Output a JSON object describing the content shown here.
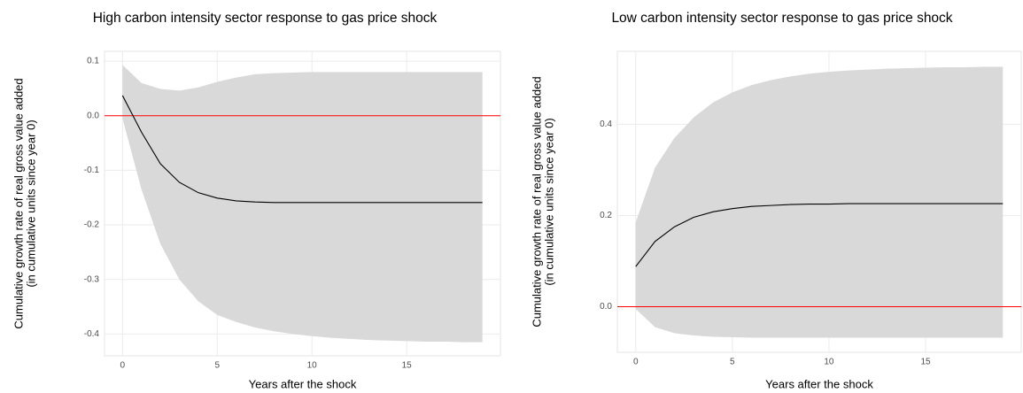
{
  "chart_data": [
    {
      "type": "line",
      "title": "High carbon intensity sector response to gas price shock",
      "x_label": "Years after the shock",
      "y_label": [
        "Cumulative growth rate of real gross value added",
        "(in cumulative units since year 0)"
      ],
      "x": [
        0,
        1,
        2,
        3,
        4,
        5,
        6,
        7,
        8,
        9,
        10,
        11,
        12,
        13,
        14,
        15,
        16,
        17,
        18,
        19
      ],
      "values": [
        0.037,
        -0.03,
        -0.088,
        -0.122,
        -0.141,
        -0.151,
        -0.156,
        -0.158,
        -0.159,
        -0.159,
        -0.159,
        -0.159,
        -0.159,
        -0.159,
        -0.159,
        -0.159,
        -0.159,
        -0.159,
        -0.159,
        -0.159
      ],
      "upper": [
        0.093,
        0.06,
        0.049,
        0.046,
        0.052,
        0.062,
        0.07,
        0.076,
        0.078,
        0.079,
        0.08,
        0.08,
        0.08,
        0.08,
        0.08,
        0.08,
        0.08,
        0.08,
        0.08,
        0.08
      ],
      "lower": [
        -0.005,
        -0.135,
        -0.235,
        -0.3,
        -0.34,
        -0.365,
        -0.378,
        -0.388,
        -0.395,
        -0.4,
        -0.404,
        -0.407,
        -0.409,
        -0.411,
        -0.412,
        -0.413,
        -0.414,
        -0.414,
        -0.415,
        -0.415
      ],
      "line_color": "#000000",
      "band_color": "#d9d9d9",
      "reference_line": {
        "value": 0,
        "color": "#ff0000"
      },
      "xlim": [
        -0.95,
        19.95
      ],
      "xticks": [
        0,
        5,
        10,
        15
      ],
      "ylim": [
        -0.44,
        0.118
      ],
      "yticks": [
        0.1,
        {
          "value": 0,
          "label": "0.0"
        },
        -0.1,
        -0.2,
        -0.3,
        -0.4
      ],
      "grid": true
    },
    {
      "type": "line",
      "title": "Low carbon intensity sector response to gas price shock",
      "x_label": "Years after the shock",
      "y_label": [
        "Cumulative growth rate of real gross value added",
        "(in cumulative units since year 0)"
      ],
      "x": [
        0,
        1,
        2,
        3,
        4,
        5,
        6,
        7,
        8,
        9,
        10,
        11,
        12,
        13,
        14,
        15,
        16,
        17,
        18,
        19
      ],
      "values": [
        0.088,
        0.143,
        0.175,
        0.196,
        0.208,
        0.215,
        0.22,
        0.222,
        0.224,
        0.225,
        0.225,
        0.226,
        0.226,
        0.226,
        0.226,
        0.226,
        0.226,
        0.226,
        0.226,
        0.226
      ],
      "upper": [
        0.185,
        0.305,
        0.37,
        0.415,
        0.448,
        0.47,
        0.486,
        0.497,
        0.505,
        0.511,
        0.515,
        0.518,
        0.52,
        0.522,
        0.523,
        0.524,
        0.525,
        0.525,
        0.526,
        0.526
      ],
      "lower": [
        -0.005,
        -0.045,
        -0.058,
        -0.063,
        -0.066,
        -0.067,
        -0.068,
        -0.068,
        -0.068,
        -0.068,
        -0.068,
        -0.068,
        -0.068,
        -0.068,
        -0.068,
        -0.068,
        -0.068,
        -0.068,
        -0.068,
        -0.068
      ],
      "line_color": "#000000",
      "band_color": "#d9d9d9",
      "reference_line": {
        "value": 0,
        "color": "#ff0000"
      },
      "xlim": [
        -0.95,
        19.95
      ],
      "xticks": [
        0,
        5,
        10,
        15
      ],
      "ylim": [
        -0.1,
        0.56
      ],
      "yticks": [
        0.4,
        0.2,
        {
          "value": 0,
          "label": "0.0"
        }
      ],
      "grid": true
    }
  ]
}
